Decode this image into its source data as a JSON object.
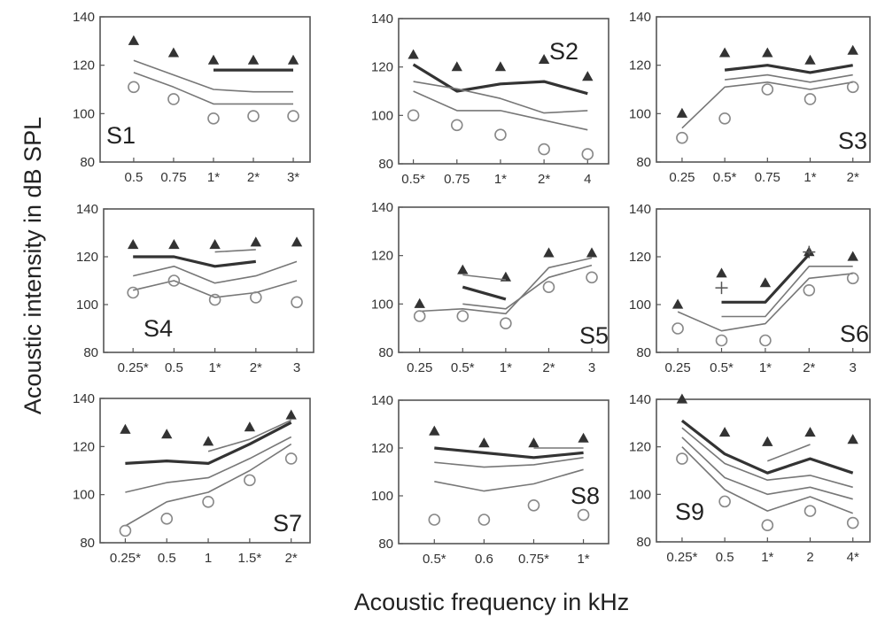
{
  "figure": {
    "ylabel": "Acoustic intensity in dB SPL",
    "xlabel": "Acoustic frequency in kHz"
  },
  "chart_data": [
    {
      "type": "line",
      "panel": "S1",
      "ylim": [
        80,
        140
      ],
      "yticks": [
        80,
        100,
        120,
        140
      ],
      "categories": [
        "0.5",
        "0.75",
        "1*",
        "2*",
        "3*"
      ],
      "series": [
        {
          "role": "triangles",
          "values": [
            130,
            125,
            122,
            122,
            122
          ]
        },
        {
          "role": "thick",
          "values": [
            null,
            null,
            118,
            118,
            118
          ]
        },
        {
          "role": "thin",
          "values": [
            122,
            116,
            110,
            109,
            109
          ]
        },
        {
          "role": "thin",
          "values": [
            117,
            111,
            104,
            104,
            104
          ]
        },
        {
          "role": "circles",
          "values": [
            111,
            106,
            98,
            99,
            99
          ]
        }
      ]
    },
    {
      "type": "line",
      "panel": "S2",
      "ylim": [
        80,
        140
      ],
      "yticks": [
        80,
        100,
        120,
        140
      ],
      "categories": [
        "0.5*",
        "0.75",
        "1*",
        "2*",
        "4"
      ],
      "series": [
        {
          "role": "triangles",
          "values": [
            125,
            120,
            120,
            123,
            116
          ]
        },
        {
          "role": "thick",
          "values": [
            121,
            110,
            113,
            114,
            109
          ]
        },
        {
          "role": "thin",
          "values": [
            114,
            111,
            107,
            101,
            102
          ]
        },
        {
          "role": "thin",
          "values": [
            110,
            102,
            102,
            98,
            94
          ]
        },
        {
          "role": "circles",
          "values": [
            100,
            96,
            92,
            86,
            84
          ]
        }
      ]
    },
    {
      "type": "line",
      "panel": "S3",
      "ylim": [
        80,
        140
      ],
      "yticks": [
        80,
        100,
        120,
        140
      ],
      "categories": [
        "0.25",
        "0.5*",
        "0.75",
        "1*",
        "2*"
      ],
      "series": [
        {
          "role": "triangles",
          "values": [
            100,
            125,
            125,
            122,
            126
          ]
        },
        {
          "role": "thick",
          "values": [
            null,
            118,
            120,
            117,
            120
          ]
        },
        {
          "role": "thin",
          "values": [
            null,
            114,
            116,
            113,
            116
          ]
        },
        {
          "role": "thin",
          "values": [
            94,
            111,
            113,
            110,
            113
          ]
        },
        {
          "role": "circles",
          "values": [
            90,
            98,
            110,
            106,
            111
          ]
        }
      ]
    },
    {
      "type": "line",
      "panel": "S4",
      "ylim": [
        80,
        140
      ],
      "yticks": [
        80,
        100,
        120,
        140
      ],
      "categories": [
        "0.25*",
        "0.5",
        "1*",
        "2*",
        "3"
      ],
      "series": [
        {
          "role": "triangles",
          "values": [
            125,
            125,
            125,
            126,
            126
          ]
        },
        {
          "role": "thick",
          "values": [
            120,
            120,
            116,
            118,
            null
          ]
        },
        {
          "role": "thin",
          "values": [
            null,
            null,
            122,
            123,
            null
          ]
        },
        {
          "role": "thin",
          "values": [
            112,
            116,
            109,
            112,
            118
          ]
        },
        {
          "role": "thin",
          "values": [
            106,
            110,
            103,
            105,
            110
          ]
        },
        {
          "role": "circles",
          "values": [
            105,
            110,
            102,
            103,
            101
          ]
        }
      ]
    },
    {
      "type": "line",
      "panel": "S5",
      "ylim": [
        80,
        140
      ],
      "yticks": [
        80,
        100,
        120,
        140
      ],
      "categories": [
        "0.25",
        "0.5*",
        "1*",
        "2*",
        "3"
      ],
      "series": [
        {
          "role": "triangles",
          "values": [
            100,
            114,
            111,
            121,
            121
          ]
        },
        {
          "role": "thick",
          "values": [
            null,
            107,
            102,
            null,
            null
          ]
        },
        {
          "role": "thin",
          "values": [
            null,
            112,
            110,
            null,
            null
          ]
        },
        {
          "role": "thin",
          "values": [
            97,
            98,
            96,
            115,
            119
          ]
        },
        {
          "role": "thin",
          "values": [
            null,
            100,
            98,
            111,
            116
          ]
        },
        {
          "role": "circles",
          "values": [
            95,
            95,
            92,
            107,
            111
          ]
        }
      ]
    },
    {
      "type": "line",
      "panel": "S6",
      "ylim": [
        80,
        140
      ],
      "yticks": [
        80,
        100,
        120,
        140
      ],
      "categories": [
        "0.25",
        "0.5*",
        "1*",
        "2*",
        "3"
      ],
      "series": [
        {
          "role": "triangles",
          "values": [
            100,
            113,
            109,
            122,
            120
          ]
        },
        {
          "role": "crosses",
          "values": [
            null,
            107,
            null,
            122,
            null
          ]
        },
        {
          "role": "thick",
          "values": [
            null,
            101,
            101,
            121,
            null
          ]
        },
        {
          "role": "thin",
          "values": [
            null,
            95,
            95,
            116,
            116
          ]
        },
        {
          "role": "thin",
          "values": [
            97,
            89,
            92,
            111,
            113
          ]
        },
        {
          "role": "circles",
          "values": [
            90,
            85,
            85,
            106,
            111
          ]
        }
      ]
    },
    {
      "type": "line",
      "panel": "S7",
      "ylim": [
        80,
        140
      ],
      "yticks": [
        80,
        100,
        120,
        140
      ],
      "categories": [
        "0.25*",
        "0.5",
        "1",
        "1.5*",
        "2*"
      ],
      "series": [
        {
          "role": "triangles",
          "values": [
            127,
            125,
            122,
            128,
            133
          ]
        },
        {
          "role": "thick",
          "values": [
            113,
            114,
            113,
            121,
            130
          ]
        },
        {
          "role": "thin",
          "values": [
            null,
            null,
            118,
            123,
            131
          ]
        },
        {
          "role": "thin",
          "values": [
            101,
            105,
            107,
            115,
            124
          ]
        },
        {
          "role": "thin",
          "values": [
            87,
            97,
            101,
            110,
            121
          ]
        },
        {
          "role": "circles",
          "values": [
            85,
            90,
            97,
            106,
            115
          ]
        }
      ]
    },
    {
      "type": "line",
      "panel": "S8",
      "ylim": [
        80,
        140
      ],
      "yticks": [
        80,
        100,
        120,
        140
      ],
      "categories": [
        "0.5*",
        "0.6",
        "0.75*",
        "1*"
      ],
      "series": [
        {
          "role": "triangles",
          "values": [
            127,
            122,
            122,
            124
          ]
        },
        {
          "role": "thick",
          "values": [
            120,
            118,
            116,
            118
          ]
        },
        {
          "role": "thin",
          "values": [
            null,
            null,
            120,
            120
          ]
        },
        {
          "role": "thin",
          "values": [
            114,
            112,
            113,
            116
          ]
        },
        {
          "role": "thin",
          "values": [
            106,
            102,
            105,
            111
          ]
        },
        {
          "role": "circles",
          "values": [
            90,
            90,
            96,
            92
          ]
        }
      ]
    },
    {
      "type": "line",
      "panel": "S9",
      "ylim": [
        80,
        140
      ],
      "yticks": [
        80,
        100,
        120,
        140
      ],
      "categories": [
        "0.25*",
        "0.5",
        "1*",
        "2",
        "4*"
      ],
      "series": [
        {
          "role": "triangles",
          "values": [
            140,
            126,
            122,
            126,
            123
          ]
        },
        {
          "role": "thick",
          "values": [
            131,
            117,
            109,
            115,
            109
          ]
        },
        {
          "role": "thin",
          "values": [
            null,
            null,
            114,
            121,
            null
          ]
        },
        {
          "role": "thin",
          "values": [
            128,
            113,
            106,
            108,
            103
          ]
        },
        {
          "role": "thin",
          "values": [
            124,
            107,
            100,
            103,
            98
          ]
        },
        {
          "role": "thin",
          "values": [
            120,
            102,
            93,
            99,
            92
          ]
        },
        {
          "role": "circles",
          "values": [
            115,
            97,
            87,
            93,
            88
          ]
        }
      ]
    }
  ]
}
